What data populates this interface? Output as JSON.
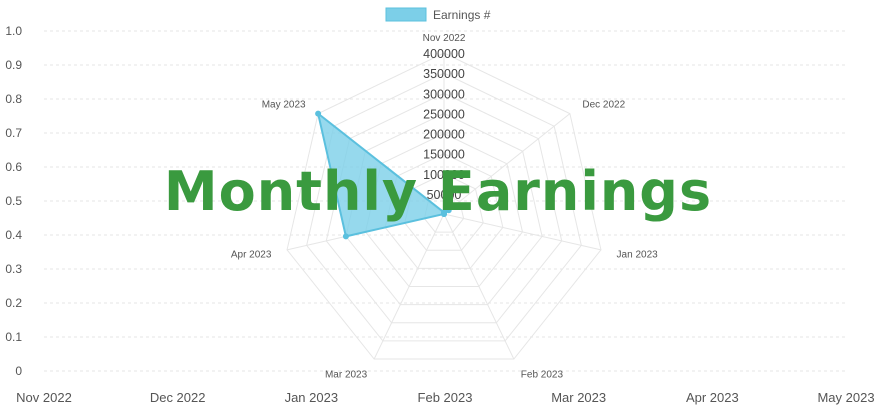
{
  "chart_data": {
    "type": "radar",
    "title": "Monthly Earnings",
    "legend": {
      "label": "Earnings #",
      "placement": "top-center"
    },
    "categories": [
      "Nov 2022",
      "Dec 2022",
      "Jan 2023",
      "Feb 2023",
      "Mar 2023",
      "Apr 2023",
      "May 2023"
    ],
    "series": [
      {
        "name": "Earnings #",
        "values": [
          4000,
          15000,
          0,
          0,
          0,
          250000,
          400000
        ]
      }
    ],
    "radial_ticks": [
      50000,
      100000,
      150000,
      200000,
      250000,
      300000,
      350000,
      400000
    ],
    "radial_range": [
      0,
      400000
    ],
    "background_axes": {
      "x_ticks": [
        "Nov 2022",
        "Dec 2022",
        "Jan 2023",
        "Feb 2023",
        "Mar 2023",
        "Apr 2023",
        "May 2023"
      ],
      "y_ticks": [
        "0",
        "0.1",
        "0.2",
        "0.3",
        "0.4",
        "0.5",
        "0.6",
        "0.7",
        "0.8",
        "0.9",
        "1.0"
      ],
      "y_range": [
        0,
        1
      ],
      "grid": true
    },
    "colors": {
      "series_fill": "#7ccfe8",
      "series_stroke": "#5bc0de",
      "title": "#3a9a3f",
      "grid": "#e6e6e6",
      "tick_text": "#555555"
    }
  }
}
